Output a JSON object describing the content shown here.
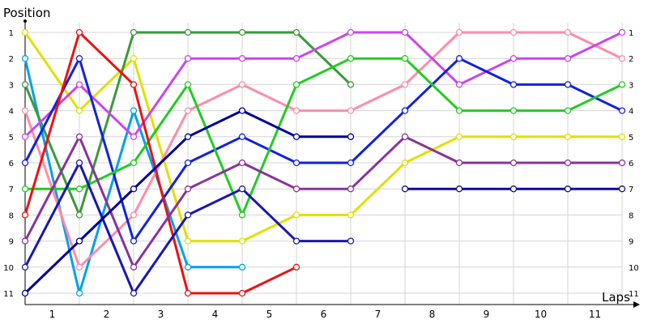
{
  "chart_data": {
    "type": "line",
    "title": "",
    "xlabel": "Laps",
    "ylabel": "Position",
    "x_ticks": [
      "1",
      "2",
      "3",
      "4",
      "5",
      "6",
      "7",
      "8",
      "9",
      "10",
      "11"
    ],
    "y_ticks": [
      "1",
      "2",
      "3",
      "4",
      "5",
      "6",
      "7",
      "8",
      "9",
      "10",
      "11"
    ],
    "x_points": [
      0,
      1,
      2,
      3,
      4,
      5,
      6,
      7,
      8,
      9,
      10,
      11
    ],
    "ylim": [
      1,
      11
    ],
    "y_inverted": true,
    "grid": true,
    "series": [
      {
        "color": "#e0e000",
        "values": [
          1,
          4,
          2,
          9,
          9,
          8,
          8,
          6,
          5,
          5,
          5,
          5
        ]
      },
      {
        "color": "#00a0ee",
        "values": [
          2,
          11,
          4,
          10,
          10,
          null,
          null,
          null,
          null,
          null,
          null,
          null
        ]
      },
      {
        "color": "#3a9a3a",
        "values": [
          3,
          8,
          1,
          1,
          1,
          1,
          3,
          null,
          null,
          null,
          null,
          null
        ]
      },
      {
        "color": "#ff8ca8",
        "values": [
          4,
          10,
          8,
          4,
          3,
          4,
          4,
          3,
          1,
          1,
          1,
          2
        ]
      },
      {
        "color": "#cc44ee",
        "values": [
          5,
          3,
          5,
          2,
          2,
          2,
          1,
          1,
          3,
          2,
          2,
          1
        ]
      },
      {
        "color": "#1122dd",
        "values": [
          6,
          2,
          9,
          6,
          5,
          6,
          6,
          4,
          2,
          3,
          3,
          4
        ]
      },
      {
        "color": "#22cc22",
        "values": [
          7,
          7,
          6,
          3,
          8,
          3,
          2,
          2,
          4,
          4,
          4,
          3
        ]
      },
      {
        "color": "#ee1111",
        "values": [
          8,
          1,
          3,
          11,
          11,
          10,
          null,
          null,
          null,
          null,
          null,
          null
        ]
      },
      {
        "color": "#883399",
        "values": [
          9,
          5,
          10,
          7,
          6,
          7,
          7,
          5,
          6,
          6,
          6,
          6
        ]
      },
      {
        "color": "#1818b0",
        "values": [
          10,
          6,
          11,
          8,
          7,
          9,
          9,
          null,
          null,
          null,
          null,
          null
        ]
      },
      {
        "color": "#000099",
        "values": [
          11,
          9,
          7,
          5,
          4,
          5,
          5,
          null,
          null,
          null,
          null,
          null
        ]
      },
      {
        "color": "#0c0c99",
        "values": [
          null,
          null,
          null,
          null,
          null,
          null,
          null,
          7,
          7,
          7,
          7,
          7
        ]
      }
    ]
  }
}
